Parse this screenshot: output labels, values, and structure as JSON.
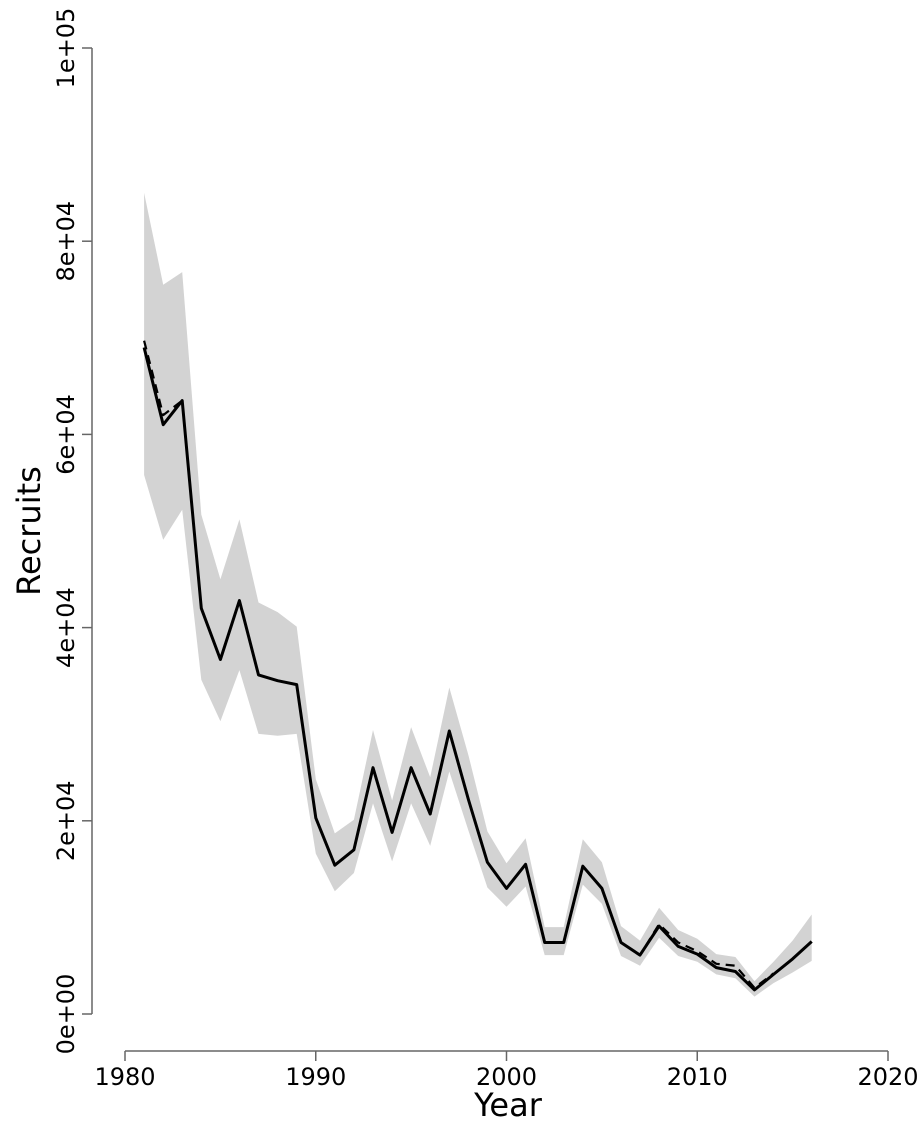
{
  "chart_data": {
    "type": "line",
    "xlabel": "Year",
    "ylabel": "Recruits",
    "xlim": [
      1980,
      2020
    ],
    "ylim": [
      0,
      100000
    ],
    "x_ticks": [
      1980,
      1990,
      2000,
      2010,
      2020
    ],
    "x_tick_labels": [
      "1980",
      "1990",
      "2000",
      "2010",
      "2020"
    ],
    "y_ticks": [
      0,
      20000,
      40000,
      60000,
      80000,
      100000
    ],
    "y_tick_labels": [
      "0e+00",
      "2e+04",
      "4e+04",
      "6e+04",
      "8e+04",
      "1e+05"
    ],
    "grid": false,
    "colors": {
      "band": "#d3d3d3",
      "line": "#000000"
    },
    "x": [
      1981,
      1982,
      1983,
      1984,
      1985,
      1986,
      1987,
      1988,
      1989,
      1990,
      1991,
      1992,
      1993,
      1994,
      1995,
      1996,
      1997,
      1998,
      1999,
      2000,
      2001,
      2002,
      2003,
      2004,
      2005,
      2006,
      2007,
      2008,
      2009,
      2010,
      2011,
      2012,
      2013,
      2014,
      2015,
      2016
    ],
    "series": [
      {
        "style": "solid",
        "values": [
          69000,
          61000,
          63500,
          42000,
          36700,
          42800,
          35100,
          34500,
          34100,
          20300,
          15400,
          17000,
          25500,
          18800,
          25500,
          20700,
          29300,
          22200,
          15700,
          13000,
          15500,
          7400,
          7400,
          15300,
          13000,
          7400,
          6100,
          9100,
          7000,
          6200,
          4800,
          4400,
          2500,
          4100,
          5700,
          7500
        ]
      },
      {
        "style": "dashed",
        "values": [
          69700,
          62000,
          63500,
          42000,
          36700,
          42800,
          35100,
          34500,
          34100,
          20300,
          15400,
          17000,
          25500,
          18800,
          25500,
          20700,
          29300,
          22200,
          15700,
          13000,
          15500,
          7400,
          7400,
          15300,
          13000,
          7400,
          6100,
          9300,
          7400,
          6500,
          5200,
          5000,
          2700,
          4200,
          null,
          null
        ]
      }
    ],
    "band": {
      "lower": [
        55800,
        49100,
        52200,
        34600,
        30300,
        35600,
        29000,
        28800,
        29000,
        16600,
        12700,
        14600,
        21800,
        15800,
        21800,
        17400,
        25100,
        19000,
        13100,
        11100,
        13200,
        6100,
        6100,
        13400,
        11400,
        6000,
        5000,
        7900,
        6000,
        5400,
        4100,
        3700,
        1800,
        3200,
        4300,
        5500
      ],
      "upper": [
        85000,
        75500,
        76800,
        51700,
        45000,
        51200,
        42600,
        41600,
        40100,
        24300,
        18700,
        20100,
        29400,
        22100,
        29700,
        24500,
        33800,
        26800,
        18900,
        15600,
        18200,
        9000,
        9000,
        18100,
        15700,
        9100,
        7600,
        11000,
        8700,
        7800,
        6200,
        5900,
        3400,
        5400,
        7600,
        10300
      ]
    }
  }
}
